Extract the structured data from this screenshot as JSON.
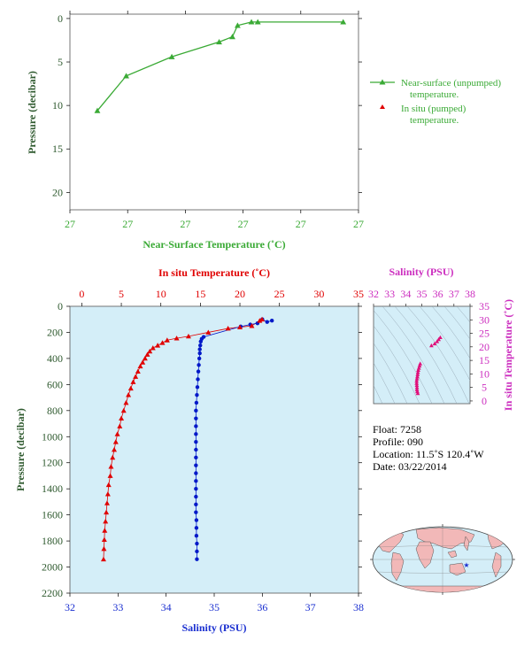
{
  "chart_data": [
    {
      "type": "line",
      "xlabel": "Near-Surface Temperature (˚C)",
      "ylabel": "Pressure (decibar)",
      "x_tick_labels": [
        "27",
        "27",
        "27",
        "27",
        "27",
        "27"
      ],
      "y_ticks": [
        0,
        5,
        10,
        15,
        20
      ],
      "ylim": [
        22,
        -0.5
      ],
      "legend_placement": "right",
      "legend": [
        {
          "label": "Near-surface (unpumped)",
          "label2": "temperature.",
          "marker": "line-triangle",
          "color": "#3aaa35"
        },
        {
          "label": "In situ (pumped)",
          "label2": "temperature.",
          "marker": "triangle",
          "color": "#e00000"
        }
      ],
      "series": [
        {
          "name": "Near-surface (unpumped) temperature.",
          "color": "#3aaa35",
          "points": [
            [
              0.947,
              0.4
            ],
            [
              0.651,
              0.4
            ],
            [
              0.629,
              0.4
            ],
            [
              0.581,
              0.8
            ],
            [
              0.563,
              2.1
            ],
            [
              0.517,
              2.7
            ],
            [
              0.353,
              4.4
            ],
            [
              0.195,
              6.6
            ],
            [
              0.095,
              10.6
            ]
          ]
        }
      ]
    },
    {
      "type": "scatter",
      "top_axis_label": "In situ Temperature (˚C)",
      "bottom_axis_label": "Salinity (PSU)",
      "ylabel": "Pressure (decibar)",
      "temperature_ticks": [
        0,
        5,
        10,
        15,
        20,
        25,
        30,
        35
      ],
      "temperature_lim": [
        -1.5,
        35
      ],
      "salinity_ticks": [
        32,
        33,
        34,
        35,
        36,
        37,
        38
      ],
      "salinity_lim": [
        32,
        38
      ],
      "pressure_ticks": [
        0,
        200,
        400,
        600,
        800,
        1000,
        1200,
        1400,
        1600,
        1800,
        2000,
        2200
      ],
      "pressure_lim": [
        2200,
        0
      ],
      "series": [
        {
          "name": "In situ Temperature (˚C)",
          "color": "#e00000",
          "marker": "triangle",
          "points": [
            [
              22.8,
              100
            ],
            [
              22.5,
              110
            ],
            [
              21.5,
              150
            ],
            [
              20.0,
              160
            ],
            [
              18.5,
              170
            ],
            [
              16.0,
              200
            ],
            [
              13.5,
              230
            ],
            [
              12.0,
              245
            ],
            [
              10.8,
              260
            ],
            [
              10.2,
              280
            ],
            [
              9.6,
              300
            ],
            [
              9.0,
              320
            ],
            [
              8.6,
              345
            ],
            [
              8.3,
              370
            ],
            [
              8.0,
              400
            ],
            [
              7.7,
              430
            ],
            [
              7.4,
              460
            ],
            [
              7.1,
              500
            ],
            [
              6.8,
              540
            ],
            [
              6.5,
              580
            ],
            [
              6.2,
              630
            ],
            [
              5.9,
              680
            ],
            [
              5.6,
              740
            ],
            [
              5.3,
              800
            ],
            [
              5.0,
              860
            ],
            [
              4.8,
              920
            ],
            [
              4.5,
              980
            ],
            [
              4.3,
              1040
            ],
            [
              4.1,
              1100
            ],
            [
              3.9,
              1160
            ],
            [
              3.7,
              1230
            ],
            [
              3.6,
              1300
            ],
            [
              3.4,
              1370
            ],
            [
              3.3,
              1440
            ],
            [
              3.2,
              1510
            ],
            [
              3.1,
              1580
            ],
            [
              3.0,
              1650
            ],
            [
              2.9,
              1720
            ],
            [
              2.85,
              1790
            ],
            [
              2.8,
              1860
            ],
            [
              2.75,
              1940
            ]
          ]
        },
        {
          "name": "Salinity (PSU)",
          "color": "#0018c8",
          "marker": "dot",
          "points": [
            [
              36.2,
              110
            ],
            [
              36.1,
              120
            ],
            [
              36.0,
              100
            ],
            [
              35.9,
              130
            ],
            [
              35.75,
              140
            ],
            [
              35.55,
              155
            ],
            [
              34.78,
              235
            ],
            [
              34.74,
              250
            ],
            [
              34.72,
              270
            ],
            [
              34.71,
              300
            ],
            [
              34.7,
              330
            ],
            [
              34.7,
              360
            ],
            [
              34.69,
              400
            ],
            [
              34.68,
              450
            ],
            [
              34.67,
              500
            ],
            [
              34.66,
              560
            ],
            [
              34.65,
              620
            ],
            [
              34.64,
              680
            ],
            [
              34.63,
              740
            ],
            [
              34.62,
              800
            ],
            [
              34.62,
              860
            ],
            [
              34.62,
              920
            ],
            [
              34.62,
              980
            ],
            [
              34.62,
              1040
            ],
            [
              34.62,
              1100
            ],
            [
              34.62,
              1160
            ],
            [
              34.62,
              1220
            ],
            [
              34.62,
              1280
            ],
            [
              34.62,
              1340
            ],
            [
              34.62,
              1400
            ],
            [
              34.62,
              1460
            ],
            [
              34.62,
              1520
            ],
            [
              34.62,
              1580
            ],
            [
              34.63,
              1640
            ],
            [
              34.63,
              1700
            ],
            [
              34.63,
              1760
            ],
            [
              34.64,
              1820
            ],
            [
              34.64,
              1880
            ],
            [
              34.64,
              1940
            ]
          ]
        }
      ]
    },
    {
      "type": "scatter",
      "xlabel": "Salinity (PSU)",
      "ylabel": "In situ Temperature (˚C)",
      "salinity_ticks": [
        32,
        33,
        34,
        35,
        36,
        37,
        38
      ],
      "temperature_ticks": [
        0,
        5,
        10,
        15,
        20,
        25,
        30,
        35
      ],
      "xlim": [
        32,
        38
      ],
      "ylim": [
        -1,
        35
      ],
      "series": [
        {
          "name": "",
          "color": "#e0107a",
          "points": [
            [
              34.75,
              2.8
            ],
            [
              34.72,
              3.5
            ],
            [
              34.7,
              4.2
            ],
            [
              34.7,
              5.0
            ],
            [
              34.69,
              5.8
            ],
            [
              34.68,
              6.6
            ],
            [
              34.68,
              7.4
            ],
            [
              34.7,
              8.2
            ],
            [
              34.72,
              9.0
            ],
            [
              34.74,
              9.8
            ],
            [
              34.76,
              10.6
            ],
            [
              34.78,
              11.4
            ],
            [
              34.82,
              12.2
            ],
            [
              34.86,
              13.0
            ],
            [
              34.9,
              13.8
            ],
            [
              35.6,
              20.5
            ],
            [
              35.8,
              21.2
            ],
            [
              35.95,
              22.0
            ],
            [
              36.05,
              22.8
            ],
            [
              36.15,
              23.5
            ]
          ]
        }
      ]
    }
  ],
  "info": {
    "float": "Float:  7258",
    "profile": "Profile:  090",
    "location": "Location:  11.5˚S  120.4˚W",
    "date": "Date:  03/22/2014"
  },
  "map": {
    "marker_color": "#1a2fd0"
  }
}
